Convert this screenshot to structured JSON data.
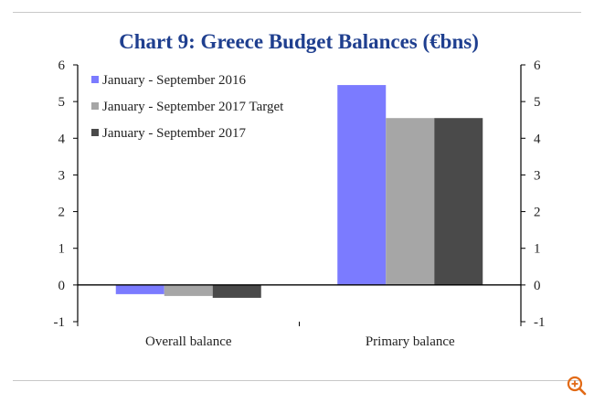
{
  "chart_data": {
    "type": "bar",
    "title": "Chart 9: Greece Budget Balances (€bns)",
    "categories": [
      "Overall balance",
      "Primary balance"
    ],
    "series": [
      {
        "name": "January - September 2016",
        "values": [
          -0.25,
          5.45
        ],
        "color": "#7b7bff"
      },
      {
        "name": "January - September 2017 Target",
        "values": [
          -0.3,
          4.55
        ],
        "color": "#a6a6a6"
      },
      {
        "name": "January - September 2017",
        "values": [
          -0.35,
          4.55
        ],
        "color": "#4a4a4a"
      }
    ],
    "ylim": [
      -1,
      6
    ],
    "yticks": [
      -1,
      0,
      1,
      2,
      3,
      4,
      5,
      6
    ],
    "ytick_labels": [
      "-1",
      "0",
      "1",
      "2",
      "3",
      "4",
      "5",
      "6"
    ],
    "xlabel": "",
    "ylabel": "",
    "legend_position": "top-left",
    "grid": false
  },
  "colors": {
    "title": "#1f3f8f",
    "axis": "#000000",
    "rule": "#c8c8c8",
    "zoom_icon": "#e26a16"
  },
  "zoom_icon": "zoom-in-icon"
}
